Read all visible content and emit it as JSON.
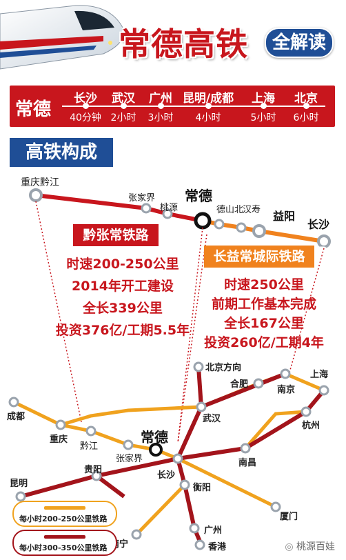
{
  "header": {
    "title": "常德高铁",
    "badge": "全解读"
  },
  "travel_times": {
    "origin": "常德",
    "destinations": [
      {
        "city": "长沙",
        "time": "40分钟"
      },
      {
        "city": "武汉",
        "time": "2小时"
      },
      {
        "city": "广州",
        "time": "3小时"
      },
      {
        "city": "昆明/成都",
        "time": "4小时"
      },
      {
        "city": "上海",
        "time": "5小时"
      },
      {
        "city": "北京",
        "time": "6小时"
      }
    ]
  },
  "section_heading": "高铁构成",
  "top_map": {
    "stations": {
      "chongqing_qianjiang": "重庆黔江",
      "zhangjiajie": "张家界",
      "taoyuan": "桃源",
      "changde": "常德",
      "deshanbei": "德山北",
      "hanshou": "汉寿",
      "yiyang": "益阳",
      "changsha": "长沙"
    }
  },
  "railways": [
    {
      "name": "黔张常铁路",
      "color": "#c8161d",
      "lines": [
        "时速200-250公里",
        "2014年开工建设",
        "全长339公里",
        "投资376亿/工期5.5年"
      ]
    },
    {
      "name": "长益常城际铁路",
      "color": "#f0821e",
      "lines": [
        "时速250公里",
        "前期工作基本完成",
        "全长167公里",
        "投资260亿/工期4年"
      ]
    }
  ],
  "bottom_map": {
    "cities": {
      "beijing_dir": "北京方向",
      "hefei": "合肥",
      "nanjing": "南京",
      "shanghai": "上海",
      "hangzhou": "杭州",
      "chengdu": "成都",
      "chongqing": "重庆",
      "qianjiang": "黔江",
      "wuhan": "武汉",
      "zhangjiajie": "张家界",
      "changde": "常德",
      "nanchang": "南昌",
      "changsha": "长沙",
      "kunming": "昆明",
      "guiyang": "贵阳",
      "hengyang": "衡阳",
      "xiamen": "厦门",
      "guangzhou": "广州",
      "nanning": "南宁",
      "hongkong": "香港"
    }
  },
  "legend": {
    "items": [
      {
        "label": "每小时200-250公里铁路",
        "color": "#f0a21e"
      },
      {
        "label": "每小时300-350公里铁路",
        "color": "#a3141b"
      }
    ]
  },
  "watermark": "桃源百娃",
  "colors": {
    "red": "#c8161d",
    "navy": "#1f4e96",
    "orange": "#f0821e",
    "dark_red": "#a3141b",
    "yellow": "#f0a21e",
    "station_gray": "#9aa3ad"
  }
}
